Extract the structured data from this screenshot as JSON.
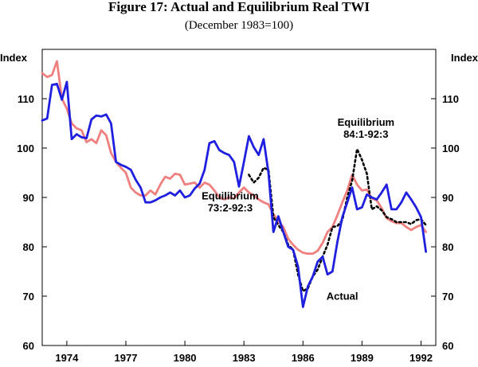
{
  "chart_data": {
    "type": "line",
    "title": "Figure 17: Actual and Equilibrium Real TWI",
    "subtitle": "(December 1983=100)",
    "ylabel_left": "Index",
    "ylabel_right": "Index",
    "ylim": [
      60,
      120
    ],
    "yticks": [
      60,
      70,
      80,
      90,
      100,
      110
    ],
    "xlim": [
      1972.75,
      1992.75
    ],
    "xticks": [
      1974,
      1977,
      1980,
      1983,
      1986,
      1989,
      1992
    ],
    "grid": false,
    "series": [
      {
        "name": "Actual",
        "color": "#1f1fe0",
        "style": "solid",
        "points": [
          [
            1972.75,
            105.6
          ],
          [
            1973.0,
            106.0
          ],
          [
            1973.25,
            112.8
          ],
          [
            1973.5,
            113.0
          ],
          [
            1973.75,
            109.8
          ],
          [
            1974.0,
            113.4
          ],
          [
            1974.25,
            101.8
          ],
          [
            1974.5,
            102.8
          ],
          [
            1974.75,
            102.2
          ],
          [
            1975.0,
            102.0
          ],
          [
            1975.25,
            105.8
          ],
          [
            1975.5,
            106.6
          ],
          [
            1975.75,
            106.4
          ],
          [
            1976.0,
            106.8
          ],
          [
            1976.25,
            105.0
          ],
          [
            1976.5,
            97.2
          ],
          [
            1976.75,
            96.6
          ],
          [
            1977.0,
            96.2
          ],
          [
            1977.25,
            95.6
          ],
          [
            1977.5,
            93.6
          ],
          [
            1977.75,
            92.0
          ],
          [
            1978.0,
            89.0
          ],
          [
            1978.25,
            89.0
          ],
          [
            1978.5,
            89.4
          ],
          [
            1978.75,
            90.0
          ],
          [
            1979.0,
            90.4
          ],
          [
            1979.25,
            91.0
          ],
          [
            1979.5,
            90.4
          ],
          [
            1979.75,
            91.4
          ],
          [
            1980.0,
            90.0
          ],
          [
            1980.25,
            90.4
          ],
          [
            1980.5,
            91.8
          ],
          [
            1980.75,
            92.8
          ],
          [
            1981.0,
            95.6
          ],
          [
            1981.25,
            101.0
          ],
          [
            1981.5,
            101.4
          ],
          [
            1981.75,
            99.6
          ],
          [
            1982.0,
            99.0
          ],
          [
            1982.25,
            98.6
          ],
          [
            1982.5,
            97.2
          ],
          [
            1982.75,
            92.2
          ],
          [
            1983.0,
            97.2
          ],
          [
            1983.25,
            102.4
          ],
          [
            1983.5,
            100.2
          ],
          [
            1983.75,
            98.6
          ],
          [
            1984.0,
            101.8
          ],
          [
            1984.25,
            95.0
          ],
          [
            1984.5,
            83.0
          ],
          [
            1984.75,
            86.2
          ],
          [
            1985.0,
            83.0
          ],
          [
            1985.25,
            80.0
          ],
          [
            1985.5,
            79.4
          ],
          [
            1985.75,
            76.0
          ],
          [
            1986.0,
            67.8
          ],
          [
            1986.25,
            72.0
          ],
          [
            1986.5,
            74.0
          ],
          [
            1986.75,
            77.0
          ],
          [
            1987.0,
            78.0
          ],
          [
            1987.25,
            74.4
          ],
          [
            1987.5,
            75.0
          ],
          [
            1987.75,
            81.0
          ],
          [
            1988.0,
            86.0
          ],
          [
            1988.25,
            89.0
          ],
          [
            1988.5,
            92.0
          ],
          [
            1988.75,
            87.6
          ],
          [
            1989.0,
            88.0
          ],
          [
            1989.25,
            90.6
          ],
          [
            1989.5,
            90.0
          ],
          [
            1989.75,
            89.6
          ],
          [
            1990.0,
            91.0
          ],
          [
            1990.25,
            92.6
          ],
          [
            1990.5,
            87.6
          ],
          [
            1990.75,
            87.6
          ],
          [
            1991.0,
            89.0
          ],
          [
            1991.25,
            91.0
          ],
          [
            1991.5,
            89.6
          ],
          [
            1991.75,
            88.0
          ],
          [
            1992.0,
            86.0
          ],
          [
            1992.25,
            79.0
          ]
        ]
      },
      {
        "name": "Equilibrium 73:2-92:3",
        "label_lines": [
          "Equilibrium",
          "73:2-92:3"
        ],
        "color": "#f07f7f",
        "style": "solid",
        "points": [
          [
            1972.75,
            115.2
          ],
          [
            1973.0,
            114.4
          ],
          [
            1973.25,
            114.8
          ],
          [
            1973.5,
            117.6
          ],
          [
            1973.75,
            110.0
          ],
          [
            1974.0,
            108.0
          ],
          [
            1974.25,
            105.0
          ],
          [
            1974.5,
            104.0
          ],
          [
            1974.75,
            103.6
          ],
          [
            1975.0,
            101.2
          ],
          [
            1975.25,
            101.8
          ],
          [
            1975.5,
            101.0
          ],
          [
            1975.75,
            103.6
          ],
          [
            1976.0,
            102.6
          ],
          [
            1976.25,
            99.0
          ],
          [
            1976.5,
            97.2
          ],
          [
            1976.75,
            96.0
          ],
          [
            1977.0,
            95.0
          ],
          [
            1977.25,
            92.0
          ],
          [
            1977.5,
            91.0
          ],
          [
            1977.75,
            90.4
          ],
          [
            1978.0,
            90.4
          ],
          [
            1978.25,
            91.4
          ],
          [
            1978.5,
            90.6
          ],
          [
            1978.75,
            92.6
          ],
          [
            1979.0,
            94.2
          ],
          [
            1979.25,
            93.8
          ],
          [
            1979.5,
            94.8
          ],
          [
            1979.75,
            94.6
          ],
          [
            1980.0,
            92.6
          ],
          [
            1980.25,
            92.8
          ],
          [
            1980.5,
            93.0
          ],
          [
            1980.75,
            92.0
          ],
          [
            1981.0,
            93.0
          ],
          [
            1981.25,
            92.6
          ],
          [
            1981.5,
            91.4
          ],
          [
            1981.75,
            90.0
          ],
          [
            1982.0,
            89.6
          ],
          [
            1982.25,
            90.0
          ],
          [
            1982.5,
            89.8
          ],
          [
            1982.75,
            91.0
          ],
          [
            1983.0,
            92.0
          ],
          [
            1983.25,
            91.0
          ],
          [
            1983.5,
            90.4
          ],
          [
            1983.75,
            89.6
          ],
          [
            1984.0,
            89.0
          ],
          [
            1984.25,
            88.6
          ],
          [
            1984.5,
            86.6
          ],
          [
            1984.75,
            85.2
          ],
          [
            1985.0,
            84.0
          ],
          [
            1985.25,
            81.6
          ],
          [
            1985.5,
            80.4
          ],
          [
            1985.75,
            79.4
          ],
          [
            1986.0,
            78.8
          ],
          [
            1986.25,
            78.6
          ],
          [
            1986.5,
            78.6
          ],
          [
            1986.75,
            79.2
          ],
          [
            1987.0,
            80.8
          ],
          [
            1987.25,
            83.0
          ],
          [
            1987.5,
            84.0
          ],
          [
            1987.75,
            86.4
          ],
          [
            1988.0,
            89.0
          ],
          [
            1988.25,
            91.4
          ],
          [
            1988.5,
            94.6
          ],
          [
            1988.75,
            92.6
          ],
          [
            1989.0,
            91.4
          ],
          [
            1989.25,
            91.6
          ],
          [
            1989.5,
            89.8
          ],
          [
            1989.75,
            89.4
          ],
          [
            1990.0,
            87.8
          ],
          [
            1990.25,
            85.8
          ],
          [
            1990.5,
            85.2
          ],
          [
            1990.75,
            84.8
          ],
          [
            1991.0,
            84.8
          ],
          [
            1991.25,
            84.0
          ],
          [
            1991.5,
            83.4
          ],
          [
            1991.75,
            84.0
          ],
          [
            1992.0,
            84.4
          ],
          [
            1992.25,
            83.0
          ]
        ]
      },
      {
        "name": "Equilibrium 84:1-92:3",
        "label_lines": [
          "Equilibrium",
          "84:1-92:3"
        ],
        "color": "#000000",
        "style": "dotted",
        "points": [
          [
            1983.25,
            94.6
          ],
          [
            1983.5,
            93.0
          ],
          [
            1983.75,
            94.0
          ],
          [
            1984.0,
            96.0
          ],
          [
            1984.25,
            95.6
          ],
          [
            1984.5,
            86.0
          ],
          [
            1984.75,
            84.4
          ],
          [
            1985.0,
            83.0
          ],
          [
            1985.25,
            80.4
          ],
          [
            1985.5,
            79.4
          ],
          [
            1985.75,
            74.4
          ],
          [
            1986.0,
            71.0
          ],
          [
            1986.25,
            71.6
          ],
          [
            1986.5,
            74.0
          ],
          [
            1986.75,
            75.4
          ],
          [
            1987.0,
            78.0
          ],
          [
            1987.25,
            80.4
          ],
          [
            1987.5,
            84.0
          ],
          [
            1987.75,
            84.2
          ],
          [
            1988.0,
            85.4
          ],
          [
            1988.25,
            90.0
          ],
          [
            1988.5,
            93.4
          ],
          [
            1988.75,
            99.8
          ],
          [
            1989.0,
            97.6
          ],
          [
            1989.25,
            94.8
          ],
          [
            1989.5,
            87.6
          ],
          [
            1989.75,
            88.2
          ],
          [
            1990.0,
            87.4
          ],
          [
            1990.25,
            86.0
          ],
          [
            1990.5,
            85.6
          ],
          [
            1990.75,
            85.0
          ],
          [
            1991.0,
            85.0
          ],
          [
            1991.25,
            85.0
          ],
          [
            1991.5,
            84.6
          ],
          [
            1991.75,
            85.4
          ],
          [
            1992.0,
            85.6
          ],
          [
            1992.25,
            84.4
          ]
        ]
      }
    ],
    "annotations": [
      {
        "lines": [
          "Equilibrium",
          "73:2-92:3"
        ],
        "x": 1982.3,
        "y": 89.6
      },
      {
        "lines": [
          "Equilibrium",
          "84:1-92:3"
        ],
        "x": 1989.2,
        "y": 104.5
      },
      {
        "lines": [
          "Actual"
        ],
        "x": 1988.0,
        "y": 69.3
      }
    ]
  }
}
